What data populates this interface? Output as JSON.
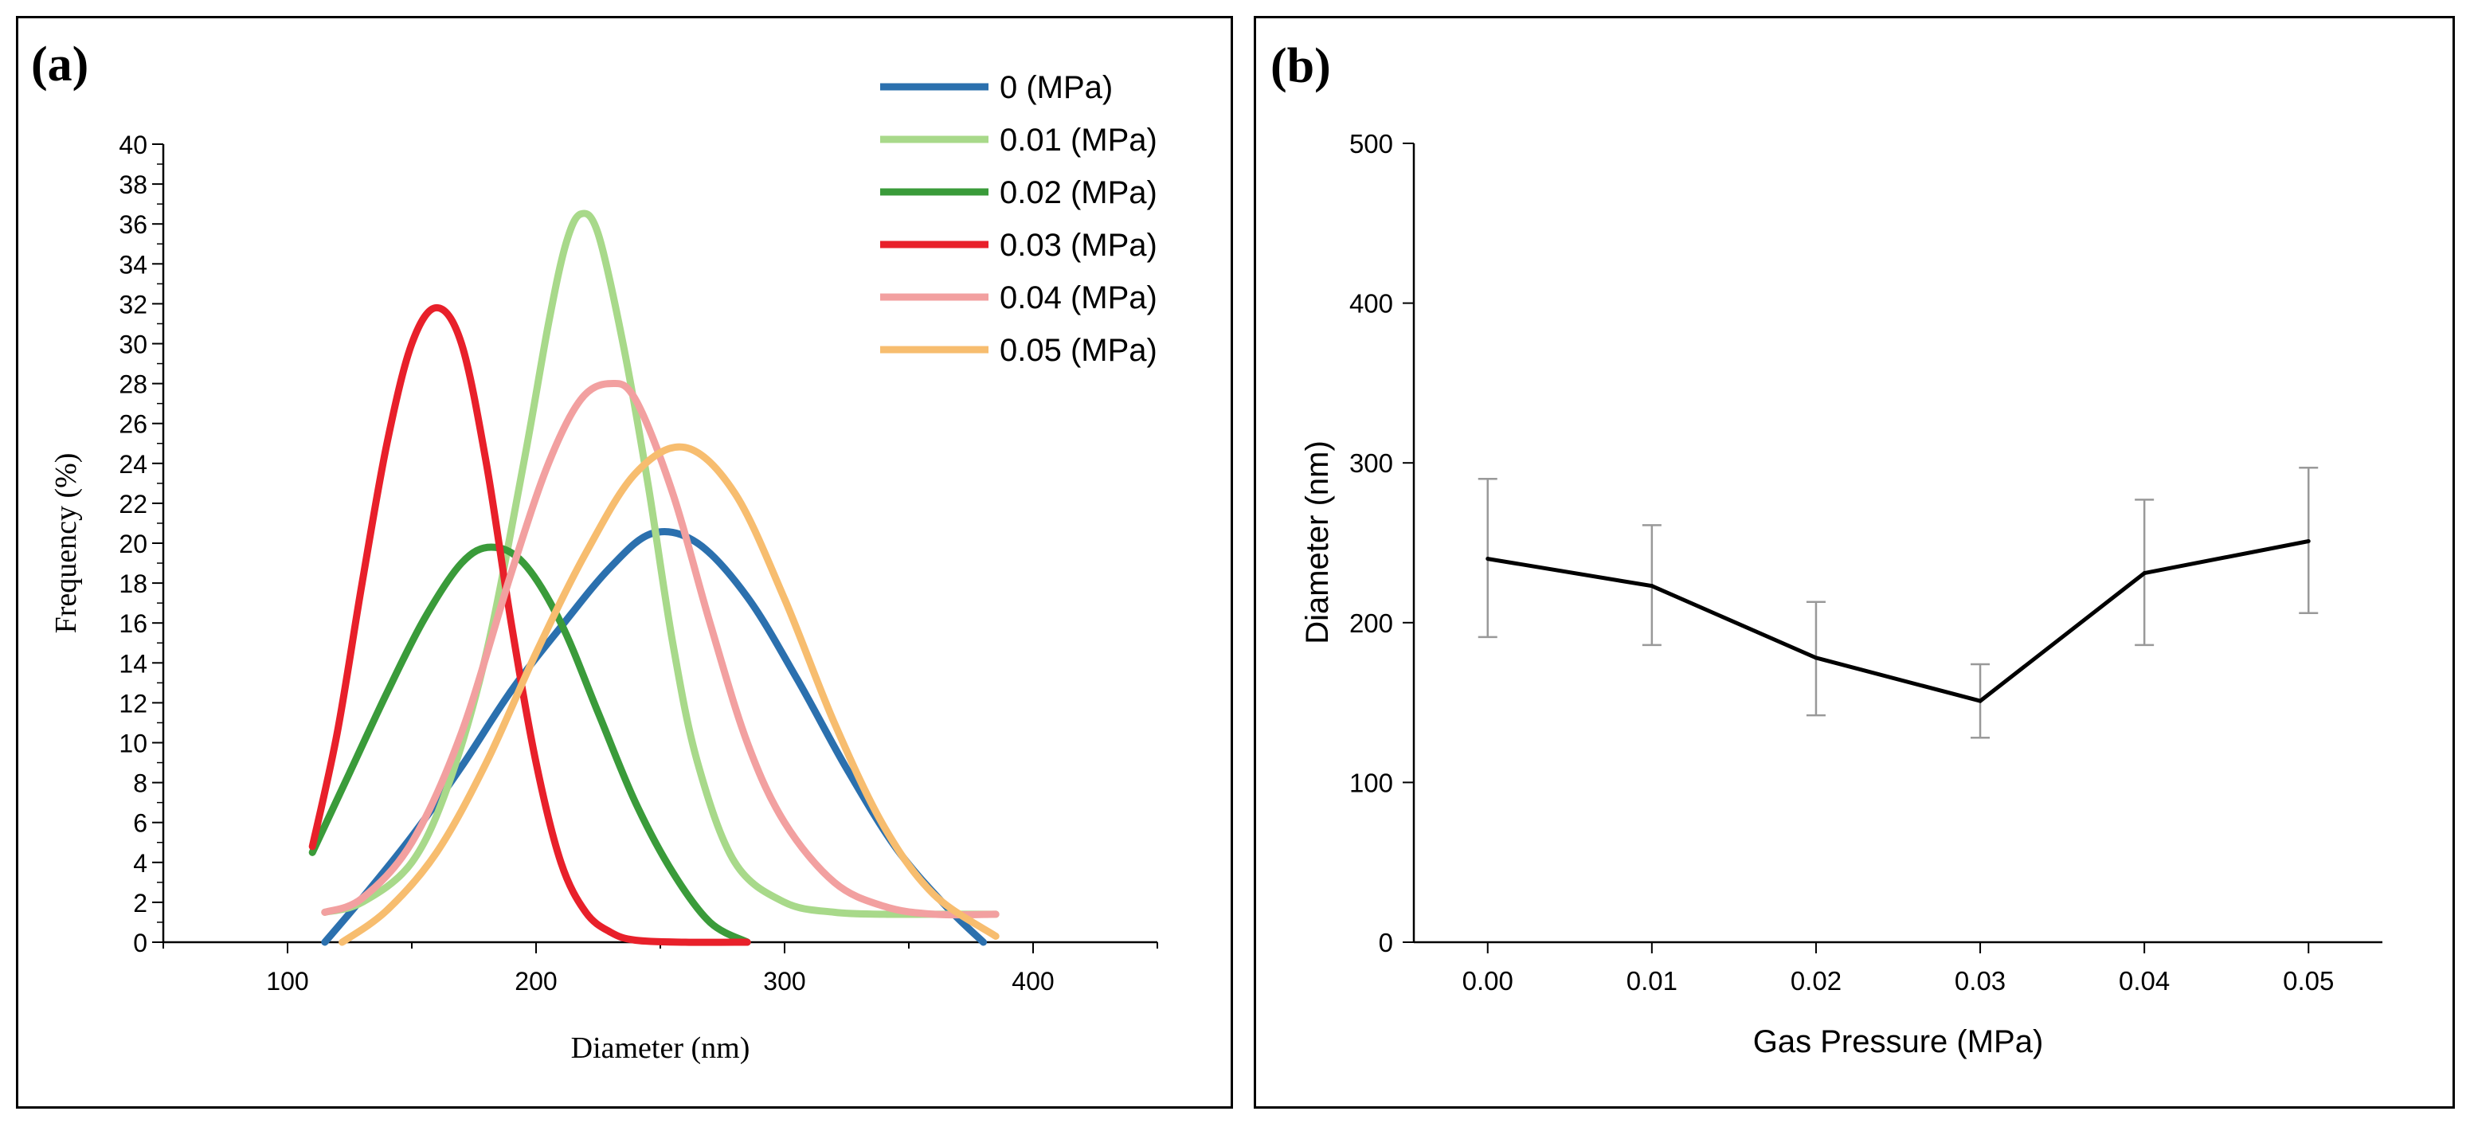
{
  "chart_data": [
    {
      "panel_label": "(a)",
      "type": "line",
      "xlabel": "Diameter (nm)",
      "ylabel": "Frequency (%)",
      "xlim": [
        50,
        450
      ],
      "ylim": [
        0,
        40
      ],
      "xticks": [
        100,
        200,
        300,
        400
      ],
      "yticks": [
        0,
        2,
        4,
        6,
        8,
        10,
        12,
        14,
        16,
        18,
        20,
        22,
        24,
        26,
        28,
        30,
        32,
        34,
        36,
        38,
        40
      ],
      "legend_position": "top-right",
      "series": [
        {
          "name": "0 (MPa)",
          "color": "#2b70ae",
          "x": [
            115,
            130,
            150,
            170,
            190,
            210,
            230,
            247,
            265,
            285,
            305,
            325,
            345,
            365,
            380
          ],
          "y": [
            0,
            2.2,
            5.3,
            8.8,
            12.6,
            15.8,
            18.8,
            20.5,
            20.0,
            17.3,
            13.2,
            8.7,
            4.7,
            1.8,
            0
          ]
        },
        {
          "name": "0.01 (MPa)",
          "color": "#a8d98a",
          "x": [
            115,
            130,
            150,
            165,
            180,
            195,
            205,
            212,
            218,
            225,
            235,
            245,
            255,
            265,
            280,
            300,
            320,
            340,
            360,
            385
          ],
          "y": [
            1.5,
            2.0,
            4.0,
            8.0,
            14.5,
            24.0,
            31.0,
            35.0,
            36.5,
            35.5,
            30.0,
            23.0,
            15.0,
            9.0,
            4.0,
            2.0,
            1.5,
            1.4,
            1.4,
            1.4
          ]
        },
        {
          "name": "0.02 (MPa)",
          "color": "#3a9b3a",
          "x": [
            110,
            125,
            140,
            155,
            170,
            182,
            195,
            210,
            225,
            240,
            255,
            270,
            285
          ],
          "y": [
            4.5,
            8.5,
            12.5,
            16.2,
            19.0,
            19.8,
            19.0,
            16.0,
            11.5,
            7.0,
            3.5,
            1.0,
            0
          ]
        },
        {
          "name": "0.03 (MPa)",
          "color": "#e8202a",
          "x": [
            110,
            120,
            130,
            140,
            150,
            160,
            170,
            180,
            190,
            200,
            210,
            220,
            230,
            240,
            260,
            285
          ],
          "y": [
            4.8,
            10.5,
            18.0,
            25.0,
            30.0,
            31.8,
            30.0,
            24.0,
            16.0,
            9.0,
            4.0,
            1.5,
            0.5,
            0.1,
            0,
            0
          ]
        },
        {
          "name": "0.04 (MPa)",
          "color": "#f2a0a0",
          "x": [
            115,
            130,
            150,
            170,
            190,
            205,
            218,
            230,
            240,
            255,
            270,
            285,
            300,
            320,
            340,
            360,
            385
          ],
          "y": [
            1.5,
            2.2,
            5.0,
            10.5,
            18.5,
            24.0,
            27.2,
            28.0,
            27.2,
            22.5,
            16.0,
            10.0,
            6.0,
            3.0,
            1.8,
            1.4,
            1.4
          ]
        },
        {
          "name": "0.05 (MPa)",
          "color": "#f7bd6f",
          "x": [
            122,
            140,
            160,
            180,
            200,
            220,
            240,
            260,
            280,
            300,
            320,
            340,
            360,
            385
          ],
          "y": [
            0,
            1.6,
            4.5,
            9.0,
            14.5,
            19.5,
            23.5,
            24.8,
            22.5,
            17.2,
            11.0,
            5.8,
            2.4,
            0.3
          ]
        }
      ]
    },
    {
      "panel_label": "(b)",
      "type": "line",
      "xlabel": "Gas Pressure (MPa)",
      "ylabel": "Diameter (nm)",
      "xlim": [
        -0.0045,
        0.0545
      ],
      "ylim": [
        0,
        500
      ],
      "xticks": [
        "0.00",
        "0.01",
        "0.02",
        "0.03",
        "0.04",
        "0.05"
      ],
      "yticks": [
        0,
        100,
        200,
        300,
        400,
        500
      ],
      "series": [
        {
          "name": "Diameter",
          "color": "#000000",
          "x": [
            0.0,
            0.01,
            0.02,
            0.03,
            0.04,
            0.05
          ],
          "y": [
            240,
            223,
            178,
            151,
            231,
            251
          ],
          "yerr_low": [
            191,
            186,
            142,
            128,
            186,
            206
          ],
          "yerr_high": [
            290,
            261,
            213,
            174,
            277,
            297
          ]
        }
      ]
    }
  ]
}
